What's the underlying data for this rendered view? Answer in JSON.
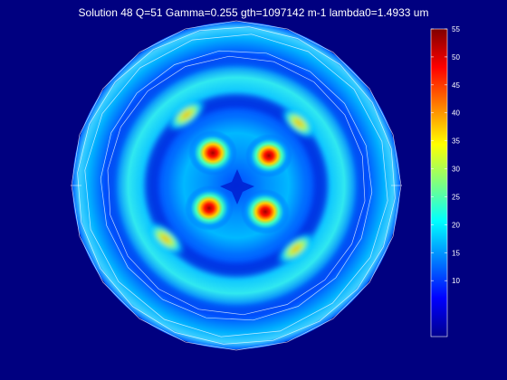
{
  "title": "Solution 48 Q=51 Gamma=0.255 gth=1097142 m-1 lambda0=1.4933 um",
  "colors": {
    "background": "#000080",
    "mesh": "#ffffff",
    "text": "#ffffff"
  },
  "chart_data": {
    "type": "heatmap",
    "title": "Solution 48 Q=51 Gamma=0.255 gth=1097142 m-1 lambda0=1.4933 um",
    "colormap": "jet",
    "colorbar": {
      "min": 0,
      "max": 0.055,
      "tick_labels": [
        "10",
        "15",
        "20",
        "25",
        "30",
        "35",
        "40",
        "45",
        "50",
        "55"
      ],
      "tick_values": [
        0.01,
        0.015,
        0.02,
        0.025,
        0.03,
        0.035,
        0.04,
        0.045,
        0.05,
        0.055
      ]
    },
    "grid": false,
    "domain": "circular cross-section with polygonal mesh outlines"
  }
}
